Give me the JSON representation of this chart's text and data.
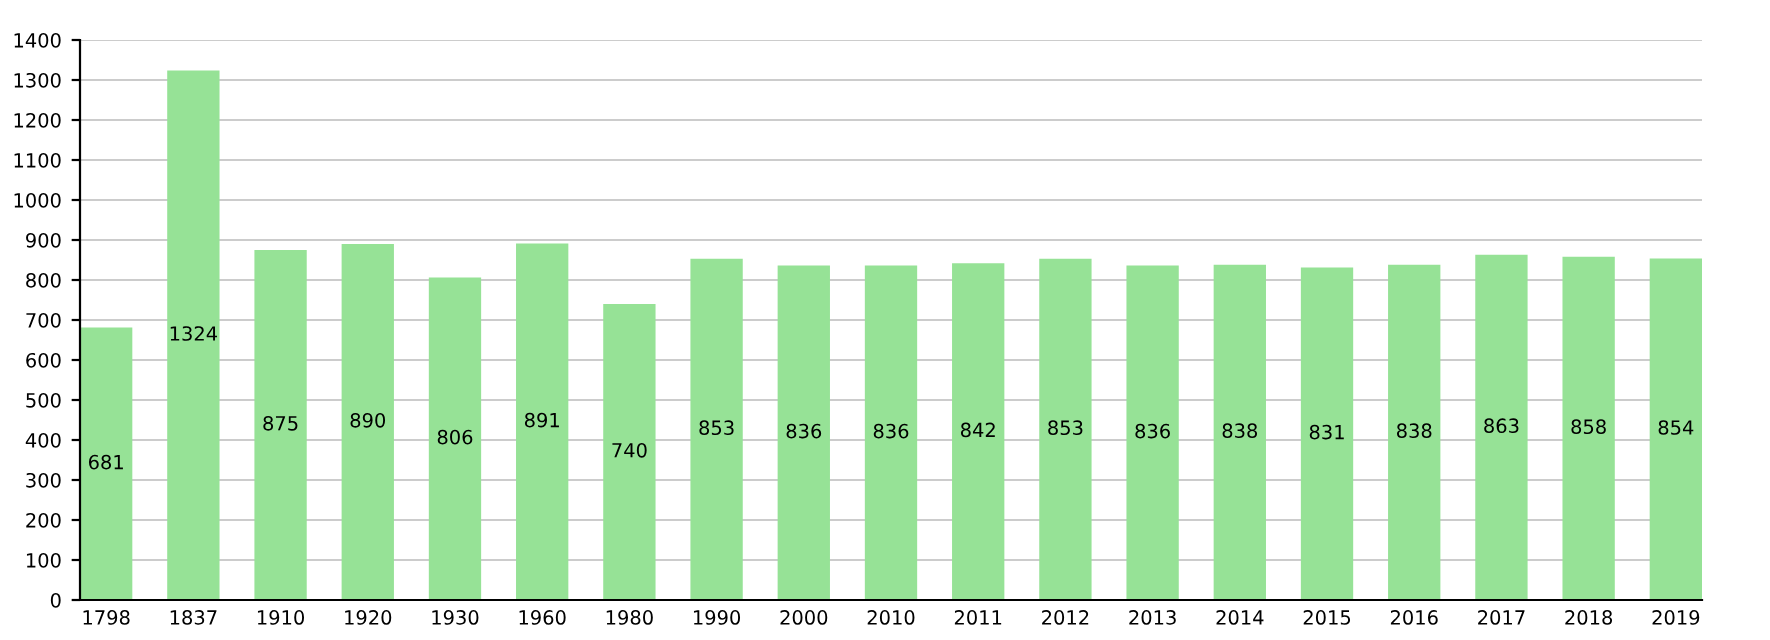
{
  "chart_data": {
    "type": "bar",
    "categories": [
      "1798",
      "1837",
      "1910",
      "1920",
      "1930",
      "1960",
      "1980",
      "1990",
      "2000",
      "2010",
      "2011",
      "2012",
      "2013",
      "2014",
      "2015",
      "2016",
      "2017",
      "2018",
      "2019"
    ],
    "values": [
      681,
      1324,
      875,
      890,
      806,
      891,
      740,
      853,
      836,
      836,
      842,
      853,
      836,
      838,
      831,
      838,
      863,
      858,
      854
    ],
    "color": "#96e296",
    "ylim": [
      0,
      1400
    ],
    "yticks": [
      0,
      100,
      200,
      300,
      400,
      500,
      600,
      700,
      800,
      900,
      1000,
      1100,
      1200,
      1300,
      1400
    ],
    "grid": "y",
    "data_labels": true,
    "legend": false
  }
}
